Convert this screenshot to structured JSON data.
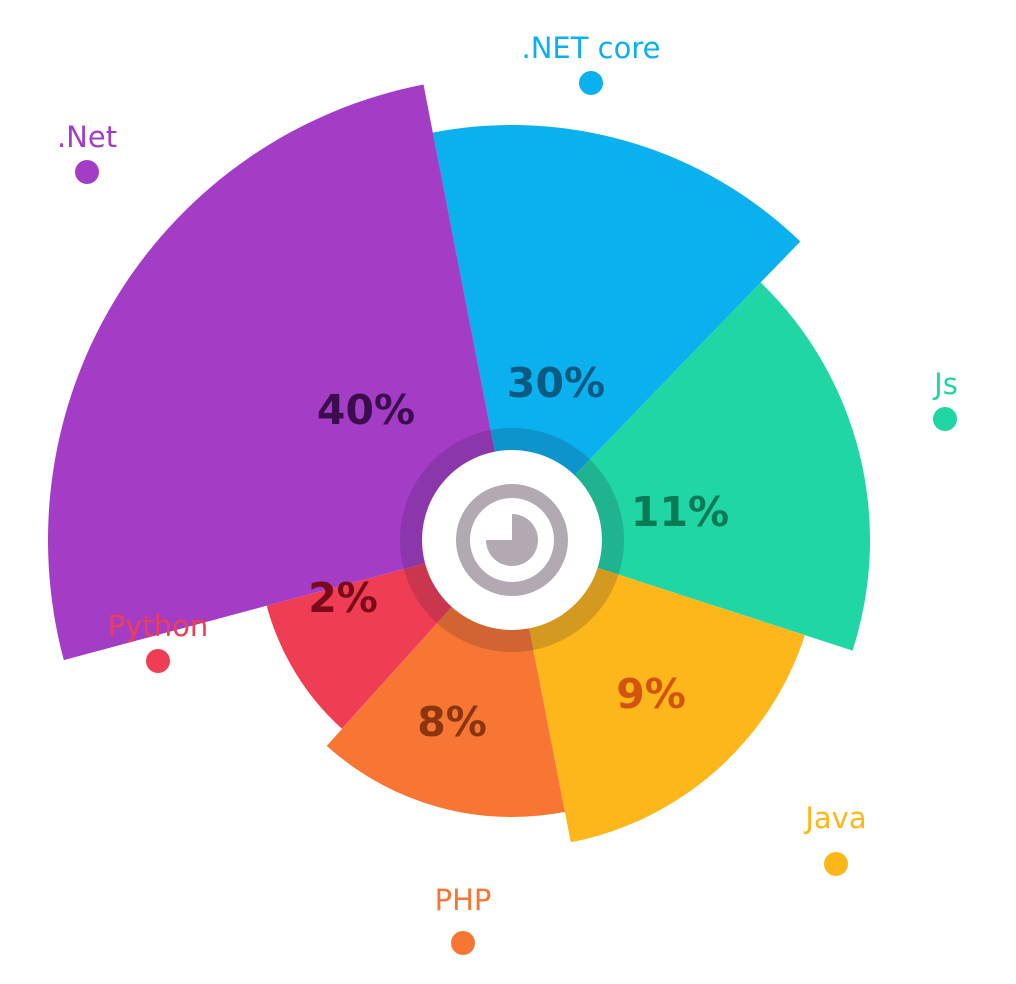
{
  "chart_data": {
    "type": "pie",
    "variant": "variable-radius",
    "categories": [
      ".NET core",
      "Js",
      "Java",
      "PHP",
      "Python",
      ".Net"
    ],
    "values": [
      30,
      11,
      9,
      8,
      2,
      40
    ],
    "value_labels": [
      "30%",
      "11%",
      "9%",
      "8%",
      "2%",
      "40%"
    ],
    "colors": [
      "#0bb0ef",
      "#20d6a4",
      "#fdb71b",
      "#f87633",
      "#ef3d54",
      "#a43dc6"
    ],
    "label_colors": [
      "#0a5a82",
      "#0b7a55",
      "#d35410",
      "#8a3510",
      "#7a0a1a",
      "#3c0d4e"
    ],
    "center_icon": "pie-chart-icon"
  }
}
